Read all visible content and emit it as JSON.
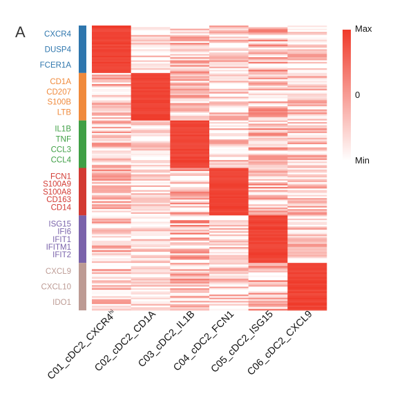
{
  "panel_label": "A",
  "chart_data": {
    "type": "heatmap",
    "columns": [
      {
        "label": "C01_cDC2_CXCR4",
        "superscript": "hi"
      },
      {
        "label": "C02_cDC2_CD1A",
        "superscript": ""
      },
      {
        "label": "C03_cDC2_IL1B",
        "superscript": ""
      },
      {
        "label": "C04_cDC2_FCN1",
        "superscript": ""
      },
      {
        "label": "C05_cDC2_ISG15",
        "superscript": ""
      },
      {
        "label": "C06_cDC2_CXCL9",
        "superscript": ""
      }
    ],
    "row_groups": [
      {
        "color": "#2e76ad",
        "rows": 30,
        "genes": [
          "CXCR4",
          "DUSP4",
          "FCER1A"
        ]
      },
      {
        "color": "#f08a3c",
        "rows": 30,
        "genes": [
          "CD1A",
          "CD207",
          "S100B",
          "LTB"
        ]
      },
      {
        "color": "#3f9f45",
        "rows": 30,
        "genes": [
          "IL1B",
          "TNF",
          "CCL3",
          "CCL4"
        ]
      },
      {
        "color": "#d23a33",
        "rows": 30,
        "genes": [
          "FCN1",
          "S100A9",
          "S100A8",
          "CD163",
          "CD14"
        ]
      },
      {
        "color": "#7a63ab",
        "rows": 30,
        "genes": [
          "ISG15",
          "IFI6",
          "IFIT1",
          "IFITM1",
          "IFIT2"
        ]
      },
      {
        "color": "#bd9b94",
        "rows": 30,
        "genes": [
          "CXCL9",
          "CXCL10",
          "IDO1"
        ]
      }
    ],
    "colorscale": {
      "low_color": "#ffffff",
      "high_color": "#ef3a2a",
      "labels": [
        "Max",
        "0",
        "Min"
      ]
    },
    "legend_position": "right",
    "grid": false
  }
}
